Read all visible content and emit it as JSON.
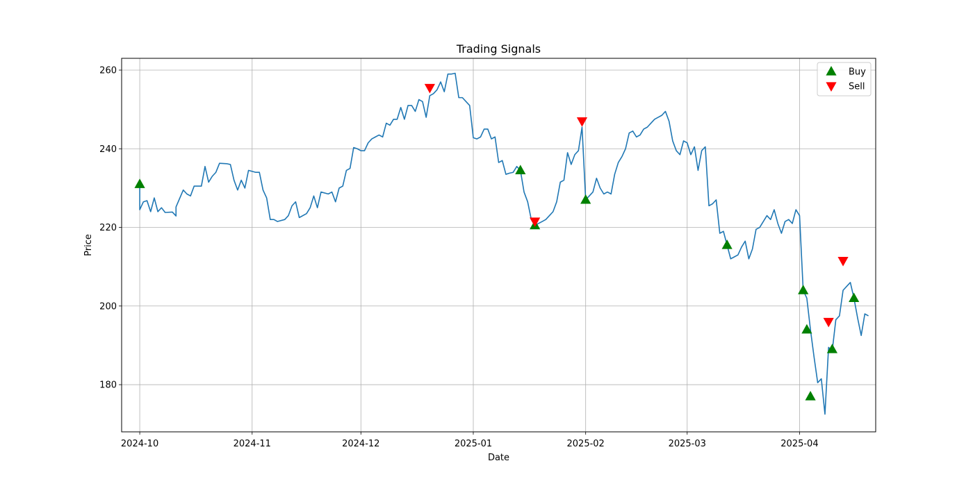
{
  "chart_data": {
    "type": "line",
    "title": "Trading Signals",
    "xlabel": "Date",
    "ylabel": "Price",
    "xlim": [
      "2024-09-26",
      "2025-04-22"
    ],
    "ylim": [
      168,
      263
    ],
    "x_ticks": [
      "2024-10-01",
      "2024-11-01",
      "2024-12-01",
      "2025-01-01",
      "2025-02-01",
      "2025-03-01",
      "2025-04-01"
    ],
    "x_tick_labels": [
      "2024-10",
      "2024-11",
      "2024-12",
      "2025-01",
      "2025-02",
      "2025-03",
      "2025-04"
    ],
    "y_ticks": [
      180,
      200,
      220,
      240,
      260
    ],
    "y_tick_labels": [
      "180",
      "200",
      "220",
      "240",
      "260"
    ],
    "grid": true,
    "legend_position": "top-right",
    "series": [
      {
        "kind": "line",
        "color": "#1f77b4",
        "points": [
          [
            "2024-10-01",
            231.0
          ],
          [
            "2024-10-01",
            224.5
          ],
          [
            "2024-10-02",
            226.5
          ],
          [
            "2024-10-03",
            226.8
          ],
          [
            "2024-10-04",
            224.0
          ],
          [
            "2024-10-05",
            227.5
          ],
          [
            "2024-10-06",
            224.0
          ],
          [
            "2024-10-07",
            225.0
          ],
          [
            "2024-10-08",
            223.8
          ],
          [
            "2024-10-10",
            223.9
          ],
          [
            "2024-10-11",
            222.9
          ],
          [
            "2024-10-11",
            225.2
          ],
          [
            "2024-10-13",
            229.5
          ],
          [
            "2024-10-14",
            228.5
          ],
          [
            "2024-10-15",
            228.0
          ],
          [
            "2024-10-16",
            230.5
          ],
          [
            "2024-10-18",
            230.5
          ],
          [
            "2024-10-19",
            235.5
          ],
          [
            "2024-10-20",
            231.5
          ],
          [
            "2024-10-21",
            233.0
          ],
          [
            "2024-10-22",
            234.0
          ],
          [
            "2024-10-23",
            236.3
          ],
          [
            "2024-10-25",
            236.2
          ],
          [
            "2024-10-26",
            236.0
          ],
          [
            "2024-10-27",
            232.0
          ],
          [
            "2024-10-28",
            229.5
          ],
          [
            "2024-10-29",
            232.0
          ],
          [
            "2024-10-30",
            230.0
          ],
          [
            "2024-10-31",
            234.5
          ],
          [
            "2024-11-02",
            234.0
          ],
          [
            "2024-11-03",
            234.0
          ],
          [
            "2024-11-04",
            229.5
          ],
          [
            "2024-11-05",
            227.5
          ],
          [
            "2024-11-06",
            222.0
          ],
          [
            "2024-11-07",
            222.0
          ],
          [
            "2024-11-08",
            221.5
          ],
          [
            "2024-11-10",
            222.0
          ],
          [
            "2024-11-11",
            223.0
          ],
          [
            "2024-11-12",
            225.5
          ],
          [
            "2024-11-13",
            226.5
          ],
          [
            "2024-11-14",
            222.5
          ],
          [
            "2024-11-16",
            223.5
          ],
          [
            "2024-11-17",
            225.0
          ],
          [
            "2024-11-18",
            228.0
          ],
          [
            "2024-11-19",
            225.0
          ],
          [
            "2024-11-20",
            229.0
          ],
          [
            "2024-11-22",
            228.5
          ],
          [
            "2024-11-23",
            229.0
          ],
          [
            "2024-11-24",
            226.5
          ],
          [
            "2024-11-25",
            230.0
          ],
          [
            "2024-11-26",
            230.5
          ],
          [
            "2024-11-27",
            234.5
          ],
          [
            "2024-11-28",
            235.0
          ],
          [
            "2024-11-29",
            240.3
          ],
          [
            "2024-11-30",
            240.0
          ],
          [
            "2024-12-01",
            239.5
          ],
          [
            "2024-12-02",
            239.5
          ],
          [
            "2024-12-03",
            241.5
          ],
          [
            "2024-12-04",
            242.5
          ],
          [
            "2024-12-05",
            243.0
          ],
          [
            "2024-12-06",
            243.5
          ],
          [
            "2024-12-07",
            243.0
          ],
          [
            "2024-12-08",
            246.5
          ],
          [
            "2024-12-09",
            246.0
          ],
          [
            "2024-12-10",
            247.5
          ],
          [
            "2024-12-11",
            247.5
          ],
          [
            "2024-12-12",
            250.5
          ],
          [
            "2024-12-13",
            247.5
          ],
          [
            "2024-12-14",
            251.0
          ],
          [
            "2024-12-15",
            251.0
          ],
          [
            "2024-12-16",
            249.5
          ],
          [
            "2024-12-17",
            252.5
          ],
          [
            "2024-12-18",
            252.0
          ],
          [
            "2024-12-19",
            248.0
          ],
          [
            "2024-12-20",
            253.5
          ],
          [
            "2024-12-21",
            254.0
          ],
          [
            "2024-12-22",
            255.0
          ],
          [
            "2024-12-23",
            257.0
          ],
          [
            "2024-12-24",
            254.5
          ],
          [
            "2024-12-25",
            259.0
          ],
          [
            "2024-12-26",
            259.0
          ],
          [
            "2024-12-27",
            259.2
          ],
          [
            "2024-12-28",
            253.0
          ],
          [
            "2024-12-29",
            253.0
          ],
          [
            "2024-12-30",
            252.0
          ],
          [
            "2024-12-31",
            251.0
          ],
          [
            "2025-01-01",
            242.8
          ],
          [
            "2025-01-02",
            242.5
          ],
          [
            "2025-01-03",
            243.0
          ],
          [
            "2025-01-04",
            245.0
          ],
          [
            "2025-01-05",
            245.0
          ],
          [
            "2025-01-06",
            242.5
          ],
          [
            "2025-01-07",
            243.0
          ],
          [
            "2025-01-08",
            236.5
          ],
          [
            "2025-01-09",
            237.0
          ],
          [
            "2025-01-10",
            233.5
          ],
          [
            "2025-01-11",
            233.8
          ],
          [
            "2025-01-12",
            234.0
          ],
          [
            "2025-01-13",
            235.5
          ],
          [
            "2025-01-14",
            234.5
          ],
          [
            "2025-01-15",
            229.0
          ],
          [
            "2025-01-16",
            226.5
          ],
          [
            "2025-01-17",
            222.0
          ],
          [
            "2025-01-18",
            220.5
          ],
          [
            "2025-01-19",
            221.0
          ],
          [
            "2025-01-20",
            221.5
          ],
          [
            "2025-01-21",
            222.0
          ],
          [
            "2025-01-22",
            223.0
          ],
          [
            "2025-01-23",
            224.0
          ],
          [
            "2025-01-24",
            226.5
          ],
          [
            "2025-01-25",
            231.5
          ],
          [
            "2025-01-26",
            232.0
          ],
          [
            "2025-01-27",
            239.0
          ],
          [
            "2025-01-28",
            236.0
          ],
          [
            "2025-01-29",
            238.5
          ],
          [
            "2025-01-30",
            239.5
          ],
          [
            "2025-01-31",
            245.5
          ],
          [
            "2025-02-01",
            227.0
          ],
          [
            "2025-02-02",
            228.0
          ],
          [
            "2025-02-03",
            229.0
          ],
          [
            "2025-02-04",
            232.5
          ],
          [
            "2025-02-05",
            230.0
          ],
          [
            "2025-02-06",
            228.5
          ],
          [
            "2025-02-07",
            229.0
          ],
          [
            "2025-02-08",
            228.5
          ],
          [
            "2025-02-09",
            233.5
          ],
          [
            "2025-02-10",
            236.5
          ],
          [
            "2025-02-11",
            238.0
          ],
          [
            "2025-02-12",
            240.0
          ],
          [
            "2025-02-13",
            244.0
          ],
          [
            "2025-02-14",
            244.5
          ],
          [
            "2025-02-15",
            243.0
          ],
          [
            "2025-02-16",
            243.5
          ],
          [
            "2025-02-17",
            245.0
          ],
          [
            "2025-02-18",
            245.5
          ],
          [
            "2025-02-19",
            246.5
          ],
          [
            "2025-02-20",
            247.5
          ],
          [
            "2025-02-21",
            248.0
          ],
          [
            "2025-02-22",
            248.5
          ],
          [
            "2025-02-23",
            249.5
          ],
          [
            "2025-02-24",
            247.0
          ],
          [
            "2025-02-25",
            242.0
          ],
          [
            "2025-02-26",
            239.5
          ],
          [
            "2025-02-27",
            238.5
          ],
          [
            "2025-02-28",
            242.0
          ],
          [
            "2025-03-01",
            241.5
          ],
          [
            "2025-03-02",
            238.5
          ],
          [
            "2025-03-03",
            240.5
          ],
          [
            "2025-03-04",
            234.5
          ],
          [
            "2025-03-05",
            239.5
          ],
          [
            "2025-03-06",
            240.5
          ],
          [
            "2025-03-07",
            225.5
          ],
          [
            "2025-03-08",
            226.0
          ],
          [
            "2025-03-09",
            227.0
          ],
          [
            "2025-03-10",
            218.5
          ],
          [
            "2025-03-11",
            219.0
          ],
          [
            "2025-03-12",
            215.5
          ],
          [
            "2025-03-13",
            212.0
          ],
          [
            "2025-03-14",
            212.5
          ],
          [
            "2025-03-15",
            213.0
          ],
          [
            "2025-03-16",
            215.0
          ],
          [
            "2025-03-17",
            216.5
          ],
          [
            "2025-03-18",
            212.0
          ],
          [
            "2025-03-19",
            214.5
          ],
          [
            "2025-03-20",
            219.5
          ],
          [
            "2025-03-21",
            220.0
          ],
          [
            "2025-03-22",
            221.5
          ],
          [
            "2025-03-23",
            223.0
          ],
          [
            "2025-03-24",
            222.0
          ],
          [
            "2025-03-25",
            224.5
          ],
          [
            "2025-03-26",
            221.0
          ],
          [
            "2025-03-27",
            218.5
          ],
          [
            "2025-03-28",
            221.5
          ],
          [
            "2025-03-29",
            222.0
          ],
          [
            "2025-03-30",
            221.0
          ],
          [
            "2025-03-31",
            224.5
          ],
          [
            "2025-04-01",
            223.0
          ],
          [
            "2025-04-02",
            204.0
          ],
          [
            "2025-04-03",
            202.0
          ],
          [
            "2025-04-04",
            194.0
          ],
          [
            "2025-04-05",
            187.0
          ],
          [
            "2025-04-06",
            180.5
          ],
          [
            "2025-04-07",
            181.5
          ],
          [
            "2025-04-08",
            172.5
          ],
          [
            "2025-04-09",
            189.5
          ],
          [
            "2025-04-10",
            188.5
          ],
          [
            "2025-04-11",
            196.5
          ],
          [
            "2025-04-12",
            197.5
          ],
          [
            "2025-04-13",
            204.0
          ],
          [
            "2025-04-14",
            205.0
          ],
          [
            "2025-04-15",
            206.0
          ],
          [
            "2025-04-16",
            202.0
          ],
          [
            "2025-04-17",
            197.0
          ],
          [
            "2025-04-18",
            192.5
          ],
          [
            "2025-04-19",
            198.0
          ],
          [
            "2025-04-20",
            197.5
          ]
        ]
      },
      {
        "name": "Buy",
        "kind": "marker",
        "marker": "triangle-up",
        "color": "#008000",
        "points": [
          [
            "2024-10-01",
            231.0
          ],
          [
            "2025-01-14",
            234.5
          ],
          [
            "2025-01-18",
            220.5
          ],
          [
            "2025-02-01",
            227.0
          ],
          [
            "2025-03-12",
            215.5
          ],
          [
            "2025-04-02",
            204.0
          ],
          [
            "2025-04-03",
            194.0
          ],
          [
            "2025-04-04",
            177.0
          ],
          [
            "2025-04-10",
            189.0
          ],
          [
            "2025-04-16",
            202.0
          ]
        ]
      },
      {
        "name": "Sell",
        "kind": "marker",
        "marker": "triangle-down",
        "color": "#ff0000",
        "points": [
          [
            "2024-12-20",
            255.5
          ],
          [
            "2025-01-18",
            221.5
          ],
          [
            "2025-01-31",
            247.0
          ],
          [
            "2025-04-09",
            196.0
          ],
          [
            "2025-04-13",
            211.5
          ]
        ]
      }
    ]
  }
}
